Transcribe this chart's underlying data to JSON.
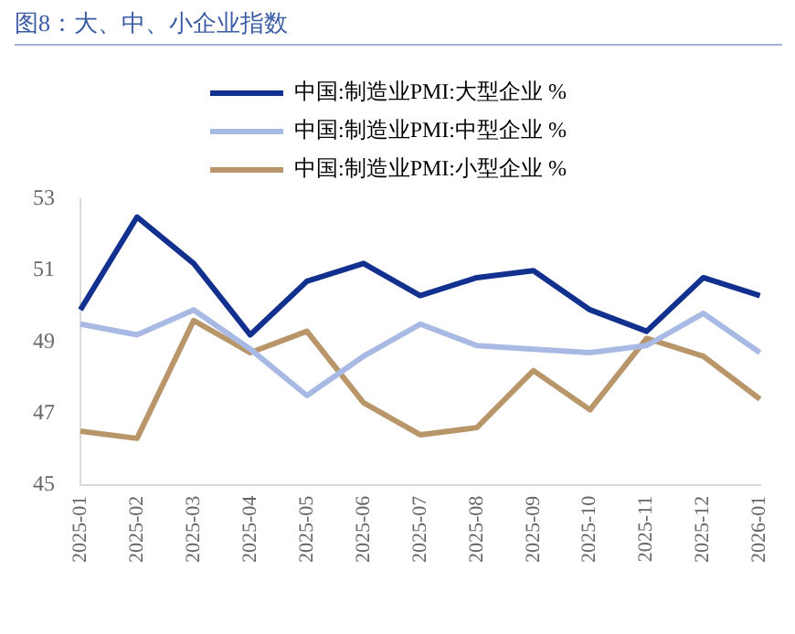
{
  "chart_data": {
    "type": "line",
    "title": "图8：大、中、小企业指数",
    "categories": [
      "2025-01",
      "2025-02",
      "2025-03",
      "2025-04",
      "2025-05",
      "2025-06",
      "2025-07",
      "2025-08",
      "2025-09",
      "2025-10",
      "2025-11",
      "2025-12",
      "2026-01"
    ],
    "series": [
      {
        "name": "中国:制造业PMI:大型企业 %",
        "color": "#12318f",
        "values": [
          49.9,
          52.5,
          51.2,
          49.2,
          50.7,
          51.2,
          50.3,
          50.8,
          51.0,
          49.9,
          49.3,
          50.8,
          50.3
        ]
      },
      {
        "name": "中国:制造业PMI:中型企业 %",
        "color": "#a8b9e3",
        "values": [
          49.5,
          49.2,
          49.9,
          48.8,
          47.5,
          48.6,
          49.5,
          48.9,
          48.8,
          48.7,
          48.9,
          49.8,
          48.7
        ]
      },
      {
        "name": "中国:制造业PMI:小型企业 %",
        "color": "#b8966a",
        "values": [
          46.5,
          46.3,
          49.6,
          48.7,
          49.3,
          47.3,
          46.4,
          46.6,
          48.2,
          47.1,
          49.1,
          48.6,
          47.4
        ]
      }
    ],
    "ylim": [
      45,
      53
    ],
    "yticks": [
      45,
      47,
      49,
      51,
      53
    ],
    "grid": false,
    "legend": "top",
    "marker": "none",
    "line_style": "solid"
  }
}
